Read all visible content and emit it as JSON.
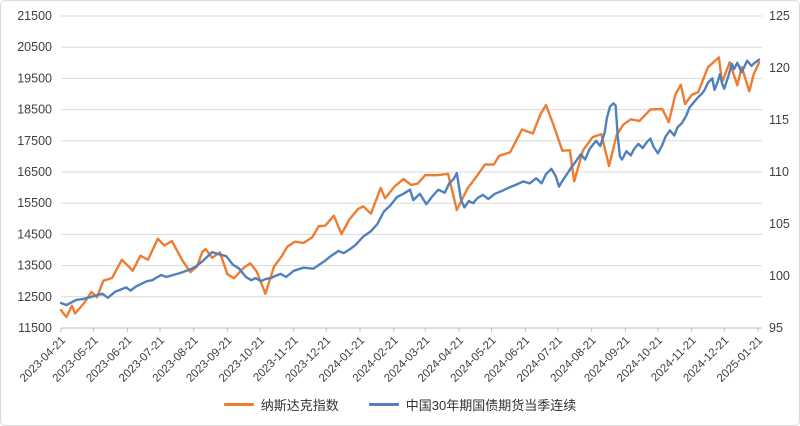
{
  "page": {
    "background": "#ffffff",
    "frame_border_color": "#d9d9d9"
  },
  "chart_data": {
    "type": "line",
    "title": "",
    "grid": true,
    "grid_color": "#d9d9d9",
    "axis_line_color": "#bfbfbf",
    "axis_text_color": "#404040",
    "legend_position": "bottom",
    "left_axis": {
      "min": 11500,
      "max": 21500,
      "step": 1000,
      "tick_labels": [
        "11500",
        "12500",
        "13500",
        "14500",
        "15500",
        "16500",
        "17500",
        "18500",
        "19500",
        "20500",
        "21500"
      ]
    },
    "right_axis": {
      "min": 95,
      "max": 125,
      "step": 5,
      "tick_labels": [
        "95",
        "100",
        "105",
        "110",
        "115",
        "120",
        "125"
      ]
    },
    "x_axis": {
      "start": "2023-04-21",
      "end": "2025-01-21",
      "tick_labels": [
        "2023-04-21",
        "2023-05-21",
        "2023-06-21",
        "2023-07-21",
        "2023-08-21",
        "2023-09-21",
        "2023-10-21",
        "2023-11-21",
        "2023-12-21",
        "2024-01-21",
        "2024-02-21",
        "2024-03-21",
        "2024-04-21",
        "2024-05-21",
        "2024-06-21",
        "2024-07-21",
        "2024-08-21",
        "2024-09-21",
        "2024-10-21",
        "2024-11-21",
        "2024-12-21",
        "2025-01-21"
      ]
    },
    "series": [
      {
        "name": "纳斯达克指数",
        "color": "#ED7D31",
        "axis": "left",
        "points": [
          [
            "2023-04-21",
            12072
          ],
          [
            "2023-04-26",
            11854
          ],
          [
            "2023-05-01",
            12213
          ],
          [
            "2023-05-04",
            11966
          ],
          [
            "2023-05-12",
            12285
          ],
          [
            "2023-05-19",
            12658
          ],
          [
            "2023-05-24",
            12484
          ],
          [
            "2023-05-30",
            13017
          ],
          [
            "2023-06-07",
            13104
          ],
          [
            "2023-06-16",
            13690
          ],
          [
            "2023-06-26",
            13336
          ],
          [
            "2023-07-03",
            13817
          ],
          [
            "2023-07-10",
            13685
          ],
          [
            "2023-07-19",
            14358
          ],
          [
            "2023-07-25",
            14145
          ],
          [
            "2023-08-01",
            14284
          ],
          [
            "2023-08-11",
            13645
          ],
          [
            "2023-08-18",
            13291
          ],
          [
            "2023-08-24",
            13464
          ],
          [
            "2023-08-29",
            13944
          ],
          [
            "2023-09-01",
            14032
          ],
          [
            "2023-09-07",
            13749
          ],
          [
            "2023-09-14",
            13926
          ],
          [
            "2023-09-21",
            13224
          ],
          [
            "2023-09-27",
            13092
          ],
          [
            "2023-10-06",
            13431
          ],
          [
            "2023-10-12",
            13574
          ],
          [
            "2023-10-18",
            13314
          ],
          [
            "2023-10-26",
            12595
          ],
          [
            "2023-11-03",
            13478
          ],
          [
            "2023-11-10",
            13798
          ],
          [
            "2023-11-15",
            14104
          ],
          [
            "2023-11-22",
            14265
          ],
          [
            "2023-11-30",
            14226
          ],
          [
            "2023-12-08",
            14404
          ],
          [
            "2023-12-14",
            14762
          ],
          [
            "2023-12-20",
            14778
          ],
          [
            "2023-12-28",
            15099
          ],
          [
            "2024-01-04",
            14510
          ],
          [
            "2024-01-11",
            14970
          ],
          [
            "2024-01-19",
            15311
          ],
          [
            "2024-01-24",
            15400
          ],
          [
            "2024-01-31",
            15164
          ],
          [
            "2024-02-09",
            15991
          ],
          [
            "2024-02-13",
            15656
          ],
          [
            "2024-02-22",
            16041
          ],
          [
            "2024-03-01",
            16275
          ],
          [
            "2024-03-08",
            16085
          ],
          [
            "2024-03-14",
            16129
          ],
          [
            "2024-03-21",
            16401
          ],
          [
            "2024-04-01",
            16397
          ],
          [
            "2024-04-11",
            16442
          ],
          [
            "2024-04-19",
            15282
          ],
          [
            "2024-04-29",
            15983
          ],
          [
            "2024-05-07",
            16349
          ],
          [
            "2024-05-15",
            16743
          ],
          [
            "2024-05-23",
            16736
          ],
          [
            "2024-05-28",
            17020
          ],
          [
            "2024-06-07",
            17133
          ],
          [
            "2024-06-18",
            17862
          ],
          [
            "2024-06-28",
            17733
          ],
          [
            "2024-07-05",
            18353
          ],
          [
            "2024-07-10",
            18647
          ],
          [
            "2024-07-17",
            17996
          ],
          [
            "2024-07-25",
            17182
          ],
          [
            "2024-08-01",
            17194
          ],
          [
            "2024-08-05",
            16200
          ],
          [
            "2024-08-13",
            17188
          ],
          [
            "2024-08-22",
            17619
          ],
          [
            "2024-08-30",
            17714
          ],
          [
            "2024-09-06",
            16691
          ],
          [
            "2024-09-13",
            17684
          ],
          [
            "2024-09-19",
            18014
          ],
          [
            "2024-09-26",
            18190
          ],
          [
            "2024-10-04",
            18138
          ],
          [
            "2024-10-14",
            18503
          ],
          [
            "2024-10-25",
            18519
          ],
          [
            "2024-10-31",
            18095
          ],
          [
            "2024-11-06",
            18983
          ],
          [
            "2024-11-11",
            19299
          ],
          [
            "2024-11-15",
            18680
          ],
          [
            "2024-11-21",
            18972
          ],
          [
            "2024-11-27",
            19060
          ],
          [
            "2024-12-06",
            19860
          ],
          [
            "2024-12-16",
            20174
          ],
          [
            "2024-12-19",
            19372
          ],
          [
            "2024-12-26",
            20020
          ],
          [
            "2025-01-02",
            19281
          ],
          [
            "2025-01-06",
            19865
          ],
          [
            "2025-01-13",
            19088
          ],
          [
            "2025-01-17",
            19630
          ],
          [
            "2025-01-22",
            20009
          ]
        ]
      },
      {
        "name": "中国30年期国债期货当季连续",
        "color": "#4E81BD",
        "axis": "right",
        "points": [
          [
            "2023-04-21",
            97.4
          ],
          [
            "2023-04-26",
            97.2
          ],
          [
            "2023-05-05",
            97.7
          ],
          [
            "2023-05-12",
            97.8
          ],
          [
            "2023-05-19",
            98.0
          ],
          [
            "2023-05-29",
            98.3
          ],
          [
            "2023-06-03",
            97.9
          ],
          [
            "2023-06-10",
            98.5
          ],
          [
            "2023-06-15",
            98.7
          ],
          [
            "2023-06-20",
            98.9
          ],
          [
            "2023-06-24",
            98.6
          ],
          [
            "2023-06-29",
            99.0
          ],
          [
            "2023-07-03",
            99.2
          ],
          [
            "2023-07-09",
            99.5
          ],
          [
            "2023-07-14",
            99.6
          ],
          [
            "2023-07-22",
            100.1
          ],
          [
            "2023-07-27",
            99.9
          ],
          [
            "2023-08-02",
            100.1
          ],
          [
            "2023-08-09",
            100.3
          ],
          [
            "2023-08-17",
            100.6
          ],
          [
            "2023-08-23",
            100.9
          ],
          [
            "2023-08-30",
            101.5
          ],
          [
            "2023-09-07",
            102.3
          ],
          [
            "2023-09-13",
            102.1
          ],
          [
            "2023-09-20",
            101.9
          ],
          [
            "2023-09-26",
            101.1
          ],
          [
            "2023-10-02",
            100.7
          ],
          [
            "2023-10-08",
            99.9
          ],
          [
            "2023-10-13",
            99.6
          ],
          [
            "2023-10-17",
            99.8
          ],
          [
            "2023-10-22",
            99.5
          ],
          [
            "2023-10-26",
            99.7
          ],
          [
            "2023-10-31",
            99.8
          ],
          [
            "2023-11-04",
            100.0
          ],
          [
            "2023-11-09",
            100.2
          ],
          [
            "2023-11-14",
            99.9
          ],
          [
            "2023-11-21",
            100.5
          ],
          [
            "2023-11-30",
            100.8
          ],
          [
            "2023-12-09",
            100.7
          ],
          [
            "2023-12-19",
            101.4
          ],
          [
            "2023-12-25",
            101.9
          ],
          [
            "2024-01-01",
            102.4
          ],
          [
            "2024-01-06",
            102.2
          ],
          [
            "2024-01-12",
            102.6
          ],
          [
            "2024-01-17",
            103.0
          ],
          [
            "2024-01-24",
            103.8
          ],
          [
            "2024-01-31",
            104.3
          ],
          [
            "2024-02-06",
            105.0
          ],
          [
            "2024-02-12",
            106.2
          ],
          [
            "2024-02-18",
            106.8
          ],
          [
            "2024-02-24",
            107.6
          ],
          [
            "2024-03-01",
            107.9
          ],
          [
            "2024-03-07",
            108.3
          ],
          [
            "2024-03-10",
            107.3
          ],
          [
            "2024-03-16",
            107.9
          ],
          [
            "2024-03-22",
            106.9
          ],
          [
            "2024-03-27",
            107.6
          ],
          [
            "2024-04-02",
            108.3
          ],
          [
            "2024-04-08",
            108.0
          ],
          [
            "2024-04-12",
            108.9
          ],
          [
            "2024-04-16",
            109.3
          ],
          [
            "2024-04-19",
            109.9
          ],
          [
            "2024-04-23",
            107.3
          ],
          [
            "2024-04-26",
            106.6
          ],
          [
            "2024-04-30",
            107.2
          ],
          [
            "2024-05-04",
            107.0
          ],
          [
            "2024-05-08",
            107.5
          ],
          [
            "2024-05-13",
            107.8
          ],
          [
            "2024-05-18",
            107.4
          ],
          [
            "2024-05-24",
            107.9
          ],
          [
            "2024-05-31",
            108.2
          ],
          [
            "2024-06-06",
            108.5
          ],
          [
            "2024-06-13",
            108.8
          ],
          [
            "2024-06-19",
            109.1
          ],
          [
            "2024-06-25",
            108.9
          ],
          [
            "2024-07-01",
            109.4
          ],
          [
            "2024-07-06",
            108.9
          ],
          [
            "2024-07-10",
            109.8
          ],
          [
            "2024-07-15",
            110.3
          ],
          [
            "2024-07-19",
            109.6
          ],
          [
            "2024-07-22",
            108.6
          ],
          [
            "2024-07-26",
            109.3
          ],
          [
            "2024-07-30",
            109.9
          ],
          [
            "2024-08-02",
            110.4
          ],
          [
            "2024-08-07",
            111.1
          ],
          [
            "2024-08-11",
            111.7
          ],
          [
            "2024-08-15",
            111.2
          ],
          [
            "2024-08-19",
            112.2
          ],
          [
            "2024-08-22",
            112.6
          ],
          [
            "2024-08-25",
            113.0
          ],
          [
            "2024-08-29",
            112.5
          ],
          [
            "2024-09-02",
            113.8
          ],
          [
            "2024-09-04",
            115.2
          ],
          [
            "2024-09-07",
            116.3
          ],
          [
            "2024-09-10",
            116.6
          ],
          [
            "2024-09-12",
            116.4
          ],
          [
            "2024-09-14",
            113.5
          ],
          [
            "2024-09-16",
            111.5
          ],
          [
            "2024-09-18",
            111.2
          ],
          [
            "2024-09-22",
            112.0
          ],
          [
            "2024-09-26",
            111.6
          ],
          [
            "2024-09-29",
            112.2
          ],
          [
            "2024-10-03",
            112.7
          ],
          [
            "2024-10-07",
            112.3
          ],
          [
            "2024-10-11",
            112.9
          ],
          [
            "2024-10-14",
            113.2
          ],
          [
            "2024-10-17",
            112.4
          ],
          [
            "2024-10-21",
            111.8
          ],
          [
            "2024-10-25",
            112.6
          ],
          [
            "2024-10-28",
            113.4
          ],
          [
            "2024-11-01",
            114.0
          ],
          [
            "2024-11-05",
            113.5
          ],
          [
            "2024-11-08",
            114.3
          ],
          [
            "2024-11-12",
            114.7
          ],
          [
            "2024-11-16",
            115.4
          ],
          [
            "2024-11-19",
            116.2
          ],
          [
            "2024-11-23",
            116.7
          ],
          [
            "2024-11-27",
            117.2
          ],
          [
            "2024-12-01",
            117.6
          ],
          [
            "2024-12-03",
            117.9
          ],
          [
            "2024-12-06",
            118.6
          ],
          [
            "2024-12-10",
            119.0
          ],
          [
            "2024-12-12",
            117.9
          ],
          [
            "2024-12-15",
            118.7
          ],
          [
            "2024-12-17",
            119.4
          ],
          [
            "2024-12-19",
            118.5
          ],
          [
            "2024-12-21",
            118.0
          ],
          [
            "2024-12-25",
            119.3
          ],
          [
            "2024-12-28",
            120.4
          ],
          [
            "2024-12-30",
            119.9
          ],
          [
            "2025-01-02",
            120.5
          ],
          [
            "2025-01-06",
            119.6
          ],
          [
            "2025-01-11",
            120.7
          ],
          [
            "2025-01-15",
            120.2
          ],
          [
            "2025-01-18",
            120.5
          ],
          [
            "2025-01-22",
            120.8
          ]
        ]
      }
    ]
  }
}
